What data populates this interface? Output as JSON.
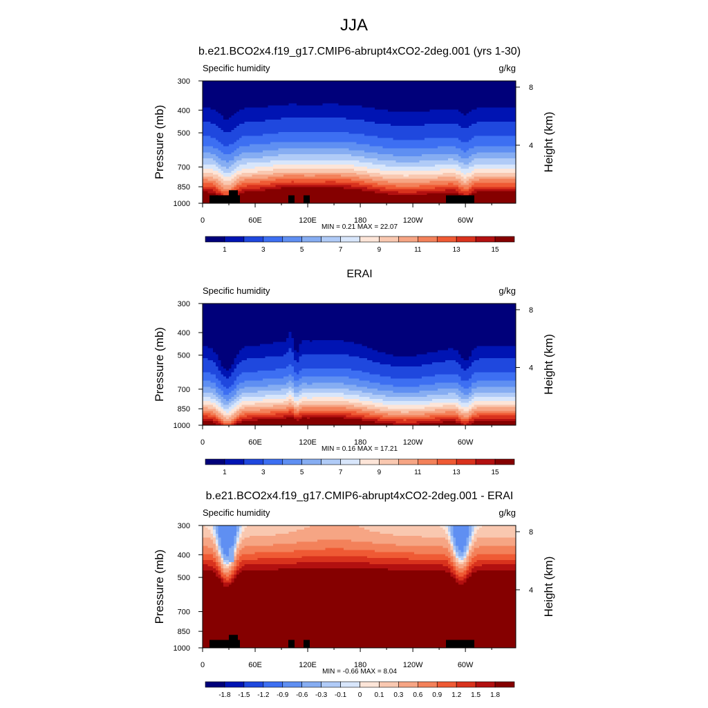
{
  "main_title": "JJA",
  "colors": {
    "seq": [
      "#00007a",
      "#0014b3",
      "#1f48de",
      "#3d6ff2",
      "#5f8ff2",
      "#86adf2",
      "#b0cbf7",
      "#d8e6fb",
      "#fde5d8",
      "#f9c8b0",
      "#f6a584",
      "#f3815a",
      "#ef5a34",
      "#d9321d",
      "#b21010",
      "#850000"
    ],
    "div": [
      "#00007a",
      "#0014b3",
      "#1f48de",
      "#3d6ff2",
      "#5f8ff2",
      "#86adf2",
      "#b0cbf7",
      "#d8e6fb",
      "#fde5d8",
      "#f9c8b0",
      "#f6a584",
      "#f3815a",
      "#ef5a34",
      "#d9321d",
      "#b21010",
      "#850000"
    ],
    "terrain": "#000000"
  },
  "chart_data": [
    {
      "type": "heatmap",
      "title": "b.e21.BCO2x4.f19_g17.CMIP6-abrupt4xCO2-2deg.001 (yrs 1-30)",
      "left_label": "Specific humidity",
      "right_label": "g/kg",
      "ylabel": "Pressure (mb)",
      "y2label": "Height (km)",
      "yticks": [
        300,
        400,
        500,
        700,
        850,
        1000
      ],
      "y2ticks": [
        8,
        4
      ],
      "xticks": [
        "0",
        "60E",
        "120E",
        "180",
        "120W",
        "60W"
      ],
      "xlim": [
        0,
        357.5
      ],
      "ylim": [
        1000,
        300
      ],
      "stats": "MIN =   0.21  MAX =  22.07",
      "colorbar_labels": [
        "1",
        "3",
        "5",
        "7",
        "9",
        "11",
        "13",
        "15"
      ],
      "colorbar_levels": [
        0.5,
        1,
        2,
        3,
        4,
        5,
        6,
        7,
        8,
        9,
        10,
        11,
        12,
        13,
        14,
        15
      ],
      "palette": "seq",
      "field": "model",
      "terrain": true,
      "min": 0.21,
      "max": 22.07
    },
    {
      "type": "heatmap",
      "title": "ERAI",
      "left_label": "Specific humidity",
      "right_label": "g/kg",
      "ylabel": "Pressure (mb)",
      "y2label": "Height (km)",
      "yticks": [
        300,
        400,
        500,
        700,
        850,
        1000
      ],
      "y2ticks": [
        8,
        4
      ],
      "xticks": [
        "0",
        "60E",
        "120E",
        "180",
        "120W",
        "60W"
      ],
      "xlim": [
        0,
        357.5
      ],
      "ylim": [
        1000,
        300
      ],
      "stats": "MIN =   0.16  MAX =  17.21",
      "colorbar_labels": [
        "1",
        "3",
        "5",
        "7",
        "9",
        "11",
        "13",
        "15"
      ],
      "colorbar_levels": [
        0.5,
        1,
        2,
        3,
        4,
        5,
        6,
        7,
        8,
        9,
        10,
        11,
        12,
        13,
        14,
        15
      ],
      "palette": "seq",
      "field": "obs",
      "terrain": false,
      "min": 0.16,
      "max": 17.21
    },
    {
      "type": "heatmap",
      "title": "b.e21.BCO2x4.f19_g17.CMIP6-abrupt4xCO2-2deg.001 - ERAI",
      "left_label": "Specific humidity",
      "right_label": "g/kg",
      "ylabel": "Pressure (mb)",
      "y2label": "Height (km)",
      "yticks": [
        300,
        400,
        500,
        700,
        850,
        1000
      ],
      "y2ticks": [
        8,
        4
      ],
      "xticks": [
        "0",
        "60E",
        "120E",
        "180",
        "120W",
        "60W"
      ],
      "xlim": [
        0,
        357.5
      ],
      "ylim": [
        1000,
        300
      ],
      "stats": "MIN =  -0.66  MAX =   8.04",
      "colorbar_labels": [
        "-1.8",
        "-1.5",
        "-1.2",
        "-0.9",
        "-0.6",
        "-0.3",
        "-0.1",
        "0",
        "0.1",
        "0.3",
        "0.6",
        "0.9",
        "1.2",
        "1.5",
        "1.8"
      ],
      "colorbar_levels": [
        -1.8,
        -1.5,
        -1.2,
        -0.9,
        -0.6,
        -0.3,
        -0.1,
        0,
        0.1,
        0.3,
        0.6,
        0.9,
        1.2,
        1.5,
        1.8
      ],
      "palette": "div",
      "field": "diff",
      "terrain": true,
      "min": -0.66,
      "max": 8.04
    }
  ]
}
